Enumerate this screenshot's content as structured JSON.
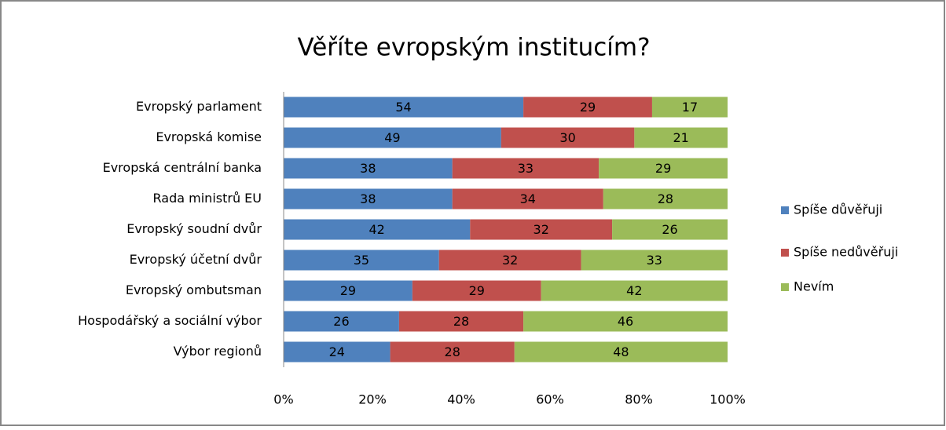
{
  "chart_data": {
    "type": "stacked_bar_horizontal",
    "title": "Věříte evropským institucím?",
    "categories": [
      "Evropský parlament",
      "Evropská komise",
      "Evropská centrální banka",
      "Rada ministrů EU",
      "Evropský soudní dvůr",
      "Evropský účetní dvůr",
      "Evropský ombutsman",
      "Hospodářský a sociální výbor",
      "Výbor regionů"
    ],
    "series": [
      {
        "name": "Spíše důvěřuji",
        "color": "#4f81bd",
        "values": [
          54,
          49,
          38,
          38,
          42,
          35,
          29,
          26,
          24
        ]
      },
      {
        "name": "Spíše nedůvěřuji",
        "color": "#c0504d",
        "values": [
          29,
          30,
          33,
          34,
          32,
          32,
          29,
          28,
          28
        ]
      },
      {
        "name": "Nevím",
        "color": "#9bbb59",
        "values": [
          17,
          21,
          29,
          28,
          26,
          33,
          42,
          46,
          48
        ]
      }
    ],
    "xlim": [
      0,
      100
    ],
    "xticks": [
      {
        "value": 0,
        "label": "0%"
      },
      {
        "value": 20,
        "label": "20%"
      },
      {
        "value": 40,
        "label": "40%"
      },
      {
        "value": 60,
        "label": "60%"
      },
      {
        "value": 80,
        "label": "80%"
      },
      {
        "value": 100,
        "label": "100%"
      }
    ],
    "legend": "right"
  }
}
